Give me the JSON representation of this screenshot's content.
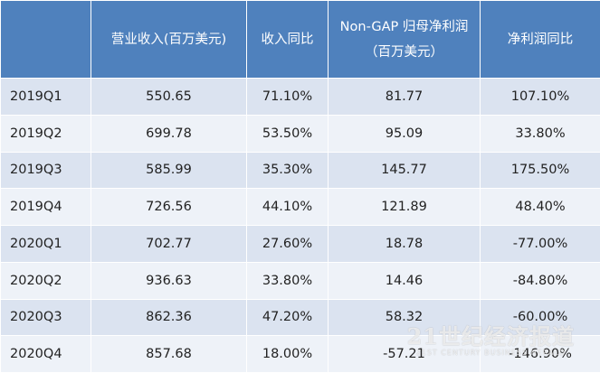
{
  "table": {
    "header": [
      "",
      "营业收入(百万美元)",
      "收入同比",
      [
        "Non-GAP 归母净利润",
        "（百万美元）"
      ],
      "净利润同比"
    ],
    "rows": [
      [
        "2019Q1",
        "550.65",
        "71.10%",
        "81.77",
        "107.10%"
      ],
      [
        "2019Q2",
        "699.78",
        "53.50%",
        "95.09",
        "33.80%"
      ],
      [
        "2019Q3",
        "585.99",
        "35.30%",
        "145.77",
        "175.50%"
      ],
      [
        "2019Q4",
        "726.56",
        "44.10%",
        "121.89",
        "48.40%"
      ],
      [
        "2020Q1",
        "702.77",
        "27.60%",
        "18.78",
        "-77.00%"
      ],
      [
        "2020Q2",
        "936.63",
        "33.80%",
        "14.46",
        "-84.80%"
      ],
      [
        "2020Q3",
        "862.36",
        "47.20%",
        "58.32",
        "-60.00%"
      ],
      [
        "2020Q4",
        "857.68",
        "18.00%",
        "-57.21",
        "-146.90%"
      ]
    ]
  },
  "watermark": {
    "title": "21世纪经济报道",
    "subtitle": "21ST CENTURY BUSINESS HERALD"
  }
}
